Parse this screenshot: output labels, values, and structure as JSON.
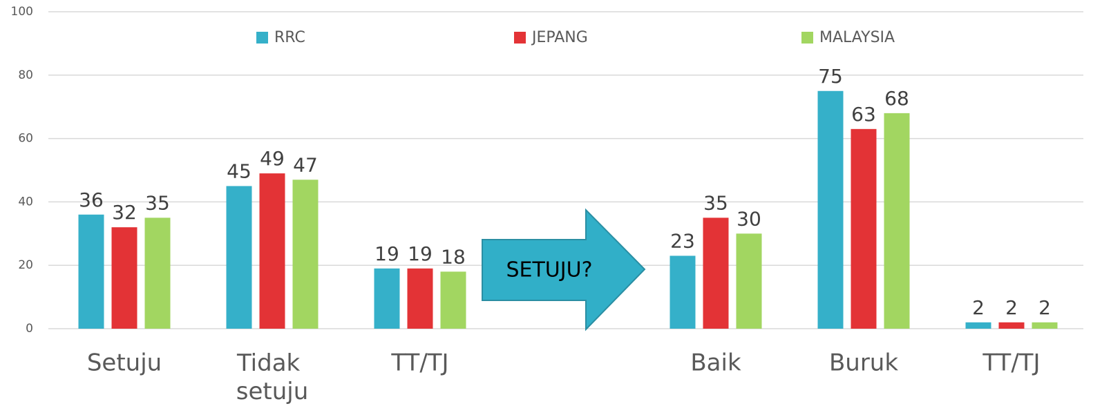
{
  "chart_data": {
    "type": "bar",
    "categories": [
      "Setuju",
      "Tidak setuju",
      "TT/TJ",
      null,
      "Baik",
      "Buruk",
      "TT/TJ"
    ],
    "series": [
      {
        "name": "RRC",
        "color": "#35b0c9",
        "values": [
          36,
          45,
          19,
          null,
          23,
          75,
          2
        ]
      },
      {
        "name": "JEPANG",
        "color": "#e33336",
        "values": [
          32,
          49,
          19,
          null,
          35,
          63,
          2
        ]
      },
      {
        "name": "MALAYSIA",
        "color": "#a2d661",
        "values": [
          35,
          47,
          18,
          null,
          30,
          68,
          2
        ]
      }
    ],
    "ylim": [
      0,
      100
    ],
    "yticks": [
      0,
      20,
      40,
      60,
      80,
      100
    ],
    "grid": true,
    "legend": "top",
    "annotation": "SETUJU?"
  }
}
